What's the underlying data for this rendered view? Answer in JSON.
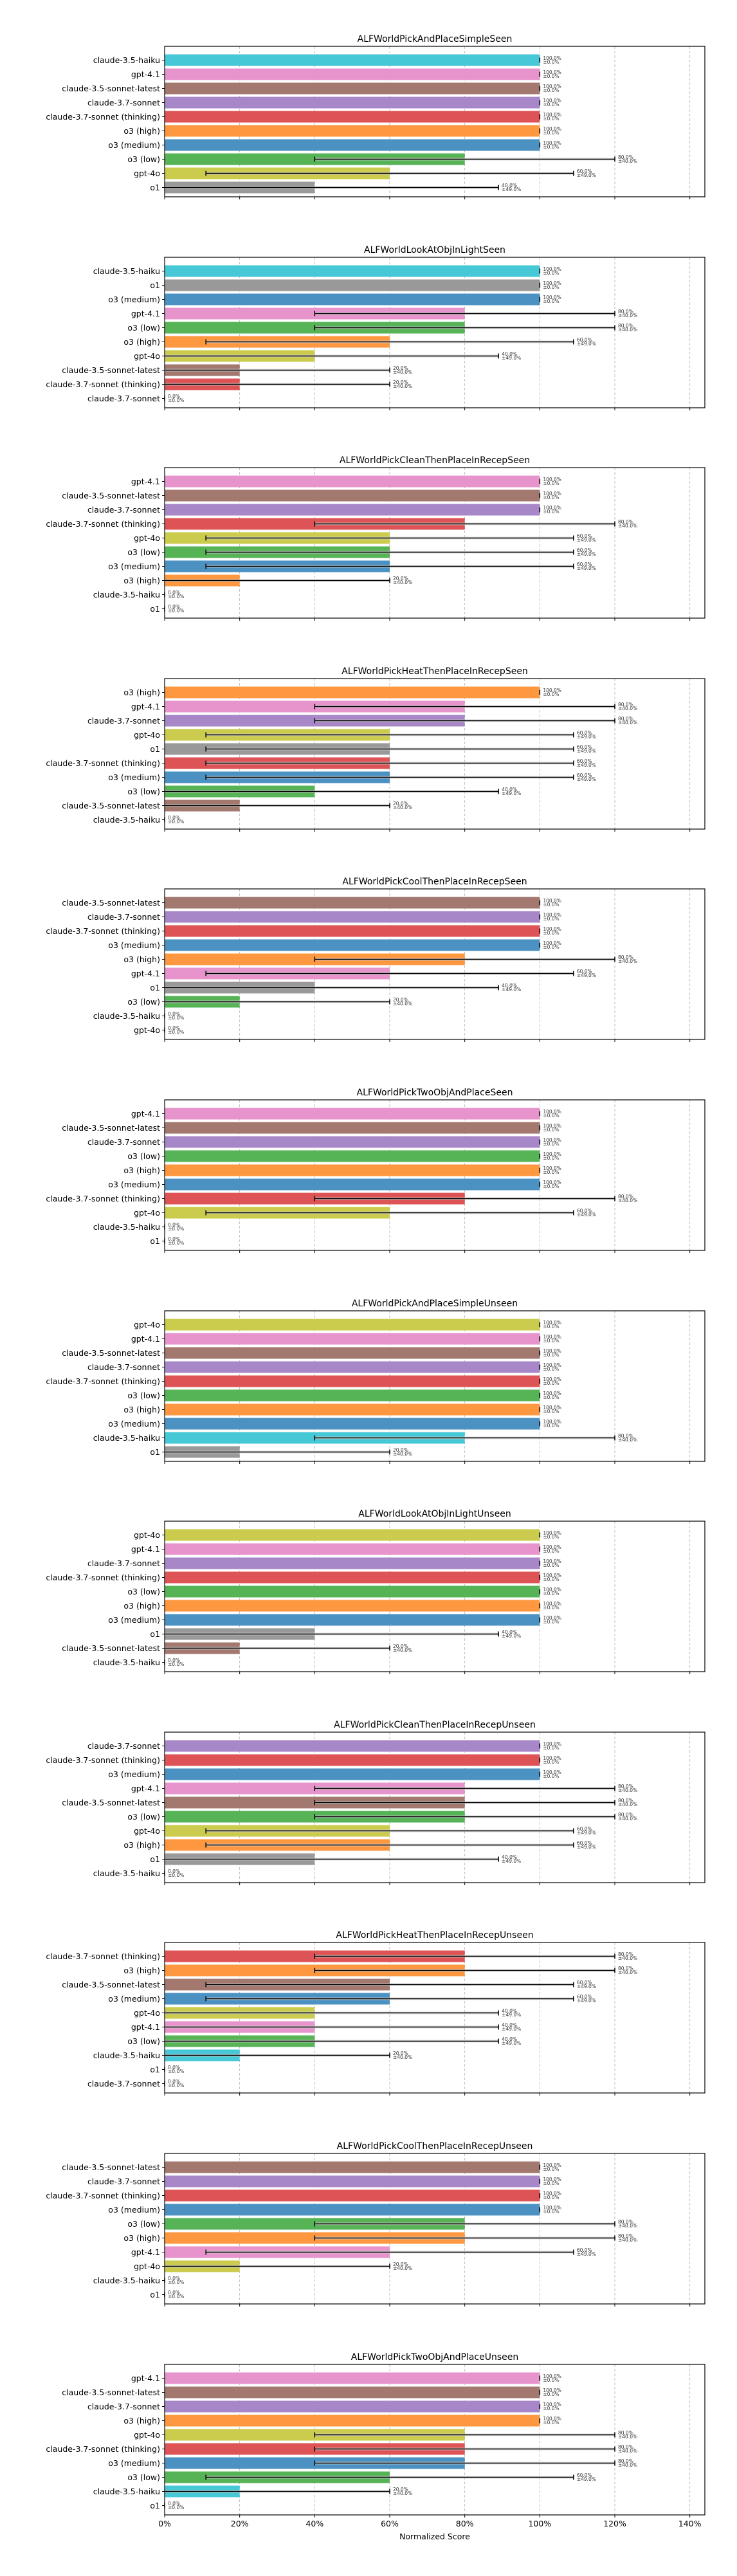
{
  "figure": {
    "xlabel": "Normalized Score",
    "xticks": [
      "0%",
      "20%",
      "40%",
      "60%",
      "80%",
      "100%",
      "120%",
      "140%"
    ],
    "model_colors": {
      "claude-3.5-haiku": "#47c8d6",
      "gpt-4.1": "#e794cc",
      "claude-3.5-sonnet-latest": "#a3786f",
      "claude-3.7-sonnet": "#a887c8",
      "claude-3.7-sonnet (thinking)": "#de5355",
      "o3 (high)": "#fd9841",
      "o3 (medium)": "#4b92c3",
      "o3 (low)": "#56b356",
      "gpt-4o": "#cbcb4d",
      "o1": "#999999"
    }
  },
  "chart_data": [
    {
      "type": "bar",
      "orientation": "horizontal",
      "title": "ALFWorldPickAndPlaceSimpleSeen",
      "xlabel": "",
      "ylabel": "",
      "xlim": [
        0,
        144
      ],
      "grid": true,
      "categories": [
        "claude-3.5-haiku",
        "gpt-4.1",
        "claude-3.5-sonnet-latest",
        "claude-3.7-sonnet",
        "claude-3.7-sonnet (thinking)",
        "o3 (high)",
        "o3 (medium)",
        "o3 (low)",
        "gpt-4o",
        "o1"
      ],
      "values": [
        100,
        100,
        100,
        100,
        100,
        100,
        100,
        80,
        60,
        40
      ],
      "errors": [
        0,
        0,
        0,
        0,
        0,
        0,
        0,
        40,
        49,
        49
      ],
      "labels": [
        "100.0%",
        "100.0%",
        "100.0%",
        "100.0%",
        "100.0%",
        "100.0%",
        "100.0%",
        "80.0%",
        "60.0%",
        "40.0%"
      ],
      "error_labels": [
        "±0.0%",
        "±0.0%",
        "±0.0%",
        "±0.0%",
        "±0.0%",
        "±0.0%",
        "±0.0%",
        "±40.0%",
        "±49.0%",
        "±49.0%"
      ]
    },
    {
      "type": "bar",
      "orientation": "horizontal",
      "title": "ALFWorldLookAtObjInLightSeen",
      "xlabel": "",
      "ylabel": "",
      "xlim": [
        0,
        144
      ],
      "grid": true,
      "categories": [
        "claude-3.5-haiku",
        "o1",
        "o3 (medium)",
        "gpt-4.1",
        "o3 (low)",
        "o3 (high)",
        "gpt-4o",
        "claude-3.5-sonnet-latest",
        "claude-3.7-sonnet (thinking)",
        "claude-3.7-sonnet"
      ],
      "values": [
        100,
        100,
        100,
        80,
        80,
        60,
        40,
        20,
        20,
        0
      ],
      "errors": [
        0,
        0,
        0,
        40,
        40,
        49,
        49,
        40,
        40,
        0
      ],
      "labels": [
        "100.0%",
        "100.0%",
        "100.0%",
        "80.0%",
        "80.0%",
        "60.0%",
        "40.0%",
        "20.0%",
        "20.0%",
        "0.0%"
      ],
      "error_labels": [
        "±0.0%",
        "±0.0%",
        "±0.0%",
        "±40.0%",
        "±40.0%",
        "±49.0%",
        "±49.0%",
        "±40.0%",
        "±40.0%",
        "±0.0%"
      ]
    },
    {
      "type": "bar",
      "orientation": "horizontal",
      "title": "ALFWorldPickCleanThenPlaceInRecepSeen",
      "xlabel": "",
      "ylabel": "",
      "xlim": [
        0,
        144
      ],
      "grid": true,
      "categories": [
        "gpt-4.1",
        "claude-3.5-sonnet-latest",
        "claude-3.7-sonnet",
        "claude-3.7-sonnet (thinking)",
        "gpt-4o",
        "o3 (low)",
        "o3 (medium)",
        "o3 (high)",
        "claude-3.5-haiku",
        "o1"
      ],
      "values": [
        100,
        100,
        100,
        80,
        60,
        60,
        60,
        20,
        0,
        0
      ],
      "errors": [
        0,
        0,
        0,
        40,
        49,
        49,
        49,
        40,
        0,
        0
      ],
      "labels": [
        "100.0%",
        "100.0%",
        "100.0%",
        "80.0%",
        "60.0%",
        "60.0%",
        "60.0%",
        "20.0%",
        "0.0%",
        "0.0%"
      ],
      "error_labels": [
        "±0.0%",
        "±0.0%",
        "±0.0%",
        "±40.0%",
        "±49.0%",
        "±49.0%",
        "±49.0%",
        "±40.0%",
        "±0.0%",
        "±0.0%"
      ]
    },
    {
      "type": "bar",
      "orientation": "horizontal",
      "title": "ALFWorldPickHeatThenPlaceInRecepSeen",
      "xlabel": "",
      "ylabel": "",
      "xlim": [
        0,
        144
      ],
      "grid": true,
      "categories": [
        "o3 (high)",
        "gpt-4.1",
        "claude-3.7-sonnet",
        "gpt-4o",
        "o1",
        "claude-3.7-sonnet (thinking)",
        "o3 (medium)",
        "o3 (low)",
        "claude-3.5-sonnet-latest",
        "claude-3.5-haiku"
      ],
      "values": [
        100,
        80,
        80,
        60,
        60,
        60,
        60,
        40,
        20,
        0
      ],
      "errors": [
        0,
        40,
        40,
        49,
        49,
        49,
        49,
        49,
        40,
        0
      ],
      "labels": [
        "100.0%",
        "80.0%",
        "80.0%",
        "60.0%",
        "60.0%",
        "60.0%",
        "60.0%",
        "40.0%",
        "20.0%",
        "0.0%"
      ],
      "error_labels": [
        "±0.0%",
        "±40.0%",
        "±40.0%",
        "±49.0%",
        "±49.0%",
        "±49.0%",
        "±49.0%",
        "±49.0%",
        "±40.0%",
        "±0.0%"
      ]
    },
    {
      "type": "bar",
      "orientation": "horizontal",
      "title": "ALFWorldPickCoolThenPlaceInRecepSeen",
      "xlabel": "",
      "ylabel": "",
      "xlim": [
        0,
        144
      ],
      "grid": true,
      "categories": [
        "claude-3.5-sonnet-latest",
        "claude-3.7-sonnet",
        "claude-3.7-sonnet (thinking)",
        "o3 (medium)",
        "o3 (high)",
        "gpt-4.1",
        "o1",
        "o3 (low)",
        "claude-3.5-haiku",
        "gpt-4o"
      ],
      "values": [
        100,
        100,
        100,
        100,
        80,
        60,
        40,
        20,
        0,
        0
      ],
      "errors": [
        0,
        0,
        0,
        0,
        40,
        49,
        49,
        40,
        0,
        0
      ],
      "labels": [
        "100.0%",
        "100.0%",
        "100.0%",
        "100.0%",
        "80.0%",
        "60.0%",
        "40.0%",
        "20.0%",
        "0.0%",
        "0.0%"
      ],
      "error_labels": [
        "±0.0%",
        "±0.0%",
        "±0.0%",
        "±0.0%",
        "±40.0%",
        "±49.0%",
        "±49.0%",
        "±40.0%",
        "±0.0%",
        "±0.0%"
      ]
    },
    {
      "type": "bar",
      "orientation": "horizontal",
      "title": "ALFWorldPickTwoObjAndPlaceSeen",
      "xlabel": "",
      "ylabel": "",
      "xlim": [
        0,
        144
      ],
      "grid": true,
      "categories": [
        "gpt-4.1",
        "claude-3.5-sonnet-latest",
        "claude-3.7-sonnet",
        "o3 (low)",
        "o3 (high)",
        "o3 (medium)",
        "claude-3.7-sonnet (thinking)",
        "gpt-4o",
        "claude-3.5-haiku",
        "o1"
      ],
      "values": [
        100,
        100,
        100,
        100,
        100,
        100,
        80,
        60,
        0,
        0
      ],
      "errors": [
        0,
        0,
        0,
        0,
        0,
        0,
        40,
        49,
        0,
        0
      ],
      "labels": [
        "100.0%",
        "100.0%",
        "100.0%",
        "100.0%",
        "100.0%",
        "100.0%",
        "80.0%",
        "60.0%",
        "0.0%",
        "0.0%"
      ],
      "error_labels": [
        "±0.0%",
        "±0.0%",
        "±0.0%",
        "±0.0%",
        "±0.0%",
        "±0.0%",
        "±40.0%",
        "±49.0%",
        "±0.0%",
        "±0.0%"
      ]
    },
    {
      "type": "bar",
      "orientation": "horizontal",
      "title": "ALFWorldPickAndPlaceSimpleUnseen",
      "xlabel": "",
      "ylabel": "",
      "xlim": [
        0,
        144
      ],
      "grid": true,
      "categories": [
        "gpt-4o",
        "gpt-4.1",
        "claude-3.5-sonnet-latest",
        "claude-3.7-sonnet",
        "claude-3.7-sonnet (thinking)",
        "o3 (low)",
        "o3 (high)",
        "o3 (medium)",
        "claude-3.5-haiku",
        "o1"
      ],
      "values": [
        100,
        100,
        100,
        100,
        100,
        100,
        100,
        100,
        80,
        20
      ],
      "errors": [
        0,
        0,
        0,
        0,
        0,
        0,
        0,
        0,
        40,
        40
      ],
      "labels": [
        "100.0%",
        "100.0%",
        "100.0%",
        "100.0%",
        "100.0%",
        "100.0%",
        "100.0%",
        "100.0%",
        "80.0%",
        "20.0%"
      ],
      "error_labels": [
        "±0.0%",
        "±0.0%",
        "±0.0%",
        "±0.0%",
        "±0.0%",
        "±0.0%",
        "±0.0%",
        "±0.0%",
        "±40.0%",
        "±40.0%"
      ]
    },
    {
      "type": "bar",
      "orientation": "horizontal",
      "title": "ALFWorldLookAtObjInLightUnseen",
      "xlabel": "",
      "ylabel": "",
      "xlim": [
        0,
        144
      ],
      "grid": true,
      "categories": [
        "gpt-4o",
        "gpt-4.1",
        "claude-3.7-sonnet",
        "claude-3.7-sonnet (thinking)",
        "o3 (low)",
        "o3 (high)",
        "o3 (medium)",
        "o1",
        "claude-3.5-sonnet-latest",
        "claude-3.5-haiku"
      ],
      "values": [
        100,
        100,
        100,
        100,
        100,
        100,
        100,
        40,
        20,
        0
      ],
      "errors": [
        0,
        0,
        0,
        0,
        0,
        0,
        0,
        49,
        40,
        0
      ],
      "labels": [
        "100.0%",
        "100.0%",
        "100.0%",
        "100.0%",
        "100.0%",
        "100.0%",
        "100.0%",
        "40.0%",
        "20.0%",
        "0.0%"
      ],
      "error_labels": [
        "±0.0%",
        "±0.0%",
        "±0.0%",
        "±0.0%",
        "±0.0%",
        "±0.0%",
        "±0.0%",
        "±49.0%",
        "±40.0%",
        "±0.0%"
      ]
    },
    {
      "type": "bar",
      "orientation": "horizontal",
      "title": "ALFWorldPickCleanThenPlaceInRecepUnseen",
      "xlabel": "",
      "ylabel": "",
      "xlim": [
        0,
        144
      ],
      "grid": true,
      "categories": [
        "claude-3.7-sonnet",
        "claude-3.7-sonnet (thinking)",
        "o3 (medium)",
        "gpt-4.1",
        "claude-3.5-sonnet-latest",
        "o3 (low)",
        "gpt-4o",
        "o3 (high)",
        "o1",
        "claude-3.5-haiku"
      ],
      "values": [
        100,
        100,
        100,
        80,
        80,
        80,
        60,
        60,
        40,
        0
      ],
      "errors": [
        0,
        0,
        0,
        40,
        40,
        40,
        49,
        49,
        49,
        0
      ],
      "labels": [
        "100.0%",
        "100.0%",
        "100.0%",
        "80.0%",
        "80.0%",
        "80.0%",
        "60.0%",
        "60.0%",
        "40.0%",
        "0.0%"
      ],
      "error_labels": [
        "±0.0%",
        "±0.0%",
        "±0.0%",
        "±40.0%",
        "±40.0%",
        "±40.0%",
        "±49.0%",
        "±49.0%",
        "±49.0%",
        "±0.0%"
      ]
    },
    {
      "type": "bar",
      "orientation": "horizontal",
      "title": "ALFWorldPickHeatThenPlaceInRecepUnseen",
      "xlabel": "",
      "ylabel": "",
      "xlim": [
        0,
        144
      ],
      "grid": true,
      "categories": [
        "claude-3.7-sonnet (thinking)",
        "o3 (high)",
        "claude-3.5-sonnet-latest",
        "o3 (medium)",
        "gpt-4o",
        "gpt-4.1",
        "o3 (low)",
        "claude-3.5-haiku",
        "o1",
        "claude-3.7-sonnet"
      ],
      "values": [
        80,
        80,
        60,
        60,
        40,
        40,
        40,
        20,
        0,
        0
      ],
      "errors": [
        40,
        40,
        49,
        49,
        49,
        49,
        49,
        40,
        0,
        0
      ],
      "labels": [
        "80.0%",
        "80.0%",
        "60.0%",
        "60.0%",
        "40.0%",
        "40.0%",
        "40.0%",
        "20.0%",
        "0.0%",
        "0.0%"
      ],
      "error_labels": [
        "±40.0%",
        "±40.0%",
        "±49.0%",
        "±49.0%",
        "±49.0%",
        "±49.0%",
        "±49.0%",
        "±40.0%",
        "±0.0%",
        "±0.0%"
      ]
    },
    {
      "type": "bar",
      "orientation": "horizontal",
      "title": "ALFWorldPickCoolThenPlaceInRecepUnseen",
      "xlabel": "",
      "ylabel": "",
      "xlim": [
        0,
        144
      ],
      "grid": true,
      "categories": [
        "claude-3.5-sonnet-latest",
        "claude-3.7-sonnet",
        "claude-3.7-sonnet (thinking)",
        "o3 (medium)",
        "o3 (low)",
        "o3 (high)",
        "gpt-4.1",
        "gpt-4o",
        "claude-3.5-haiku",
        "o1"
      ],
      "values": [
        100,
        100,
        100,
        100,
        80,
        80,
        60,
        20,
        0,
        0
      ],
      "errors": [
        0,
        0,
        0,
        0,
        40,
        40,
        49,
        40,
        0,
        0
      ],
      "labels": [
        "100.0%",
        "100.0%",
        "100.0%",
        "100.0%",
        "80.0%",
        "80.0%",
        "60.0%",
        "20.0%",
        "0.0%",
        "0.0%"
      ],
      "error_labels": [
        "±0.0%",
        "±0.0%",
        "±0.0%",
        "±0.0%",
        "±40.0%",
        "±40.0%",
        "±49.0%",
        "±40.0%",
        "±0.0%",
        "±0.0%"
      ]
    },
    {
      "type": "bar",
      "orientation": "horizontal",
      "title": "ALFWorldPickTwoObjAndPlaceUnseen",
      "xlabel": "Normalized Score",
      "ylabel": "",
      "xlim": [
        0,
        144
      ],
      "grid": true,
      "categories": [
        "gpt-4.1",
        "claude-3.5-sonnet-latest",
        "claude-3.7-sonnet",
        "o3 (high)",
        "gpt-4o",
        "claude-3.7-sonnet (thinking)",
        "o3 (medium)",
        "o3 (low)",
        "claude-3.5-haiku",
        "o1"
      ],
      "values": [
        100,
        100,
        100,
        100,
        80,
        80,
        80,
        60,
        20,
        0
      ],
      "errors": [
        0,
        0,
        0,
        0,
        40,
        40,
        40,
        49,
        40,
        0
      ],
      "labels": [
        "100.0%",
        "100.0%",
        "100.0%",
        "100.0%",
        "80.0%",
        "80.0%",
        "80.0%",
        "60.0%",
        "20.0%",
        "0.0%"
      ],
      "error_labels": [
        "±0.0%",
        "±0.0%",
        "±0.0%",
        "±0.0%",
        "±40.0%",
        "±40.0%",
        "±40.0%",
        "±49.0%",
        "±40.0%",
        "±0.0%"
      ],
      "xticks": [
        "0%",
        "20%",
        "40%",
        "60%",
        "80%",
        "100%",
        "120%",
        "140%"
      ]
    }
  ]
}
